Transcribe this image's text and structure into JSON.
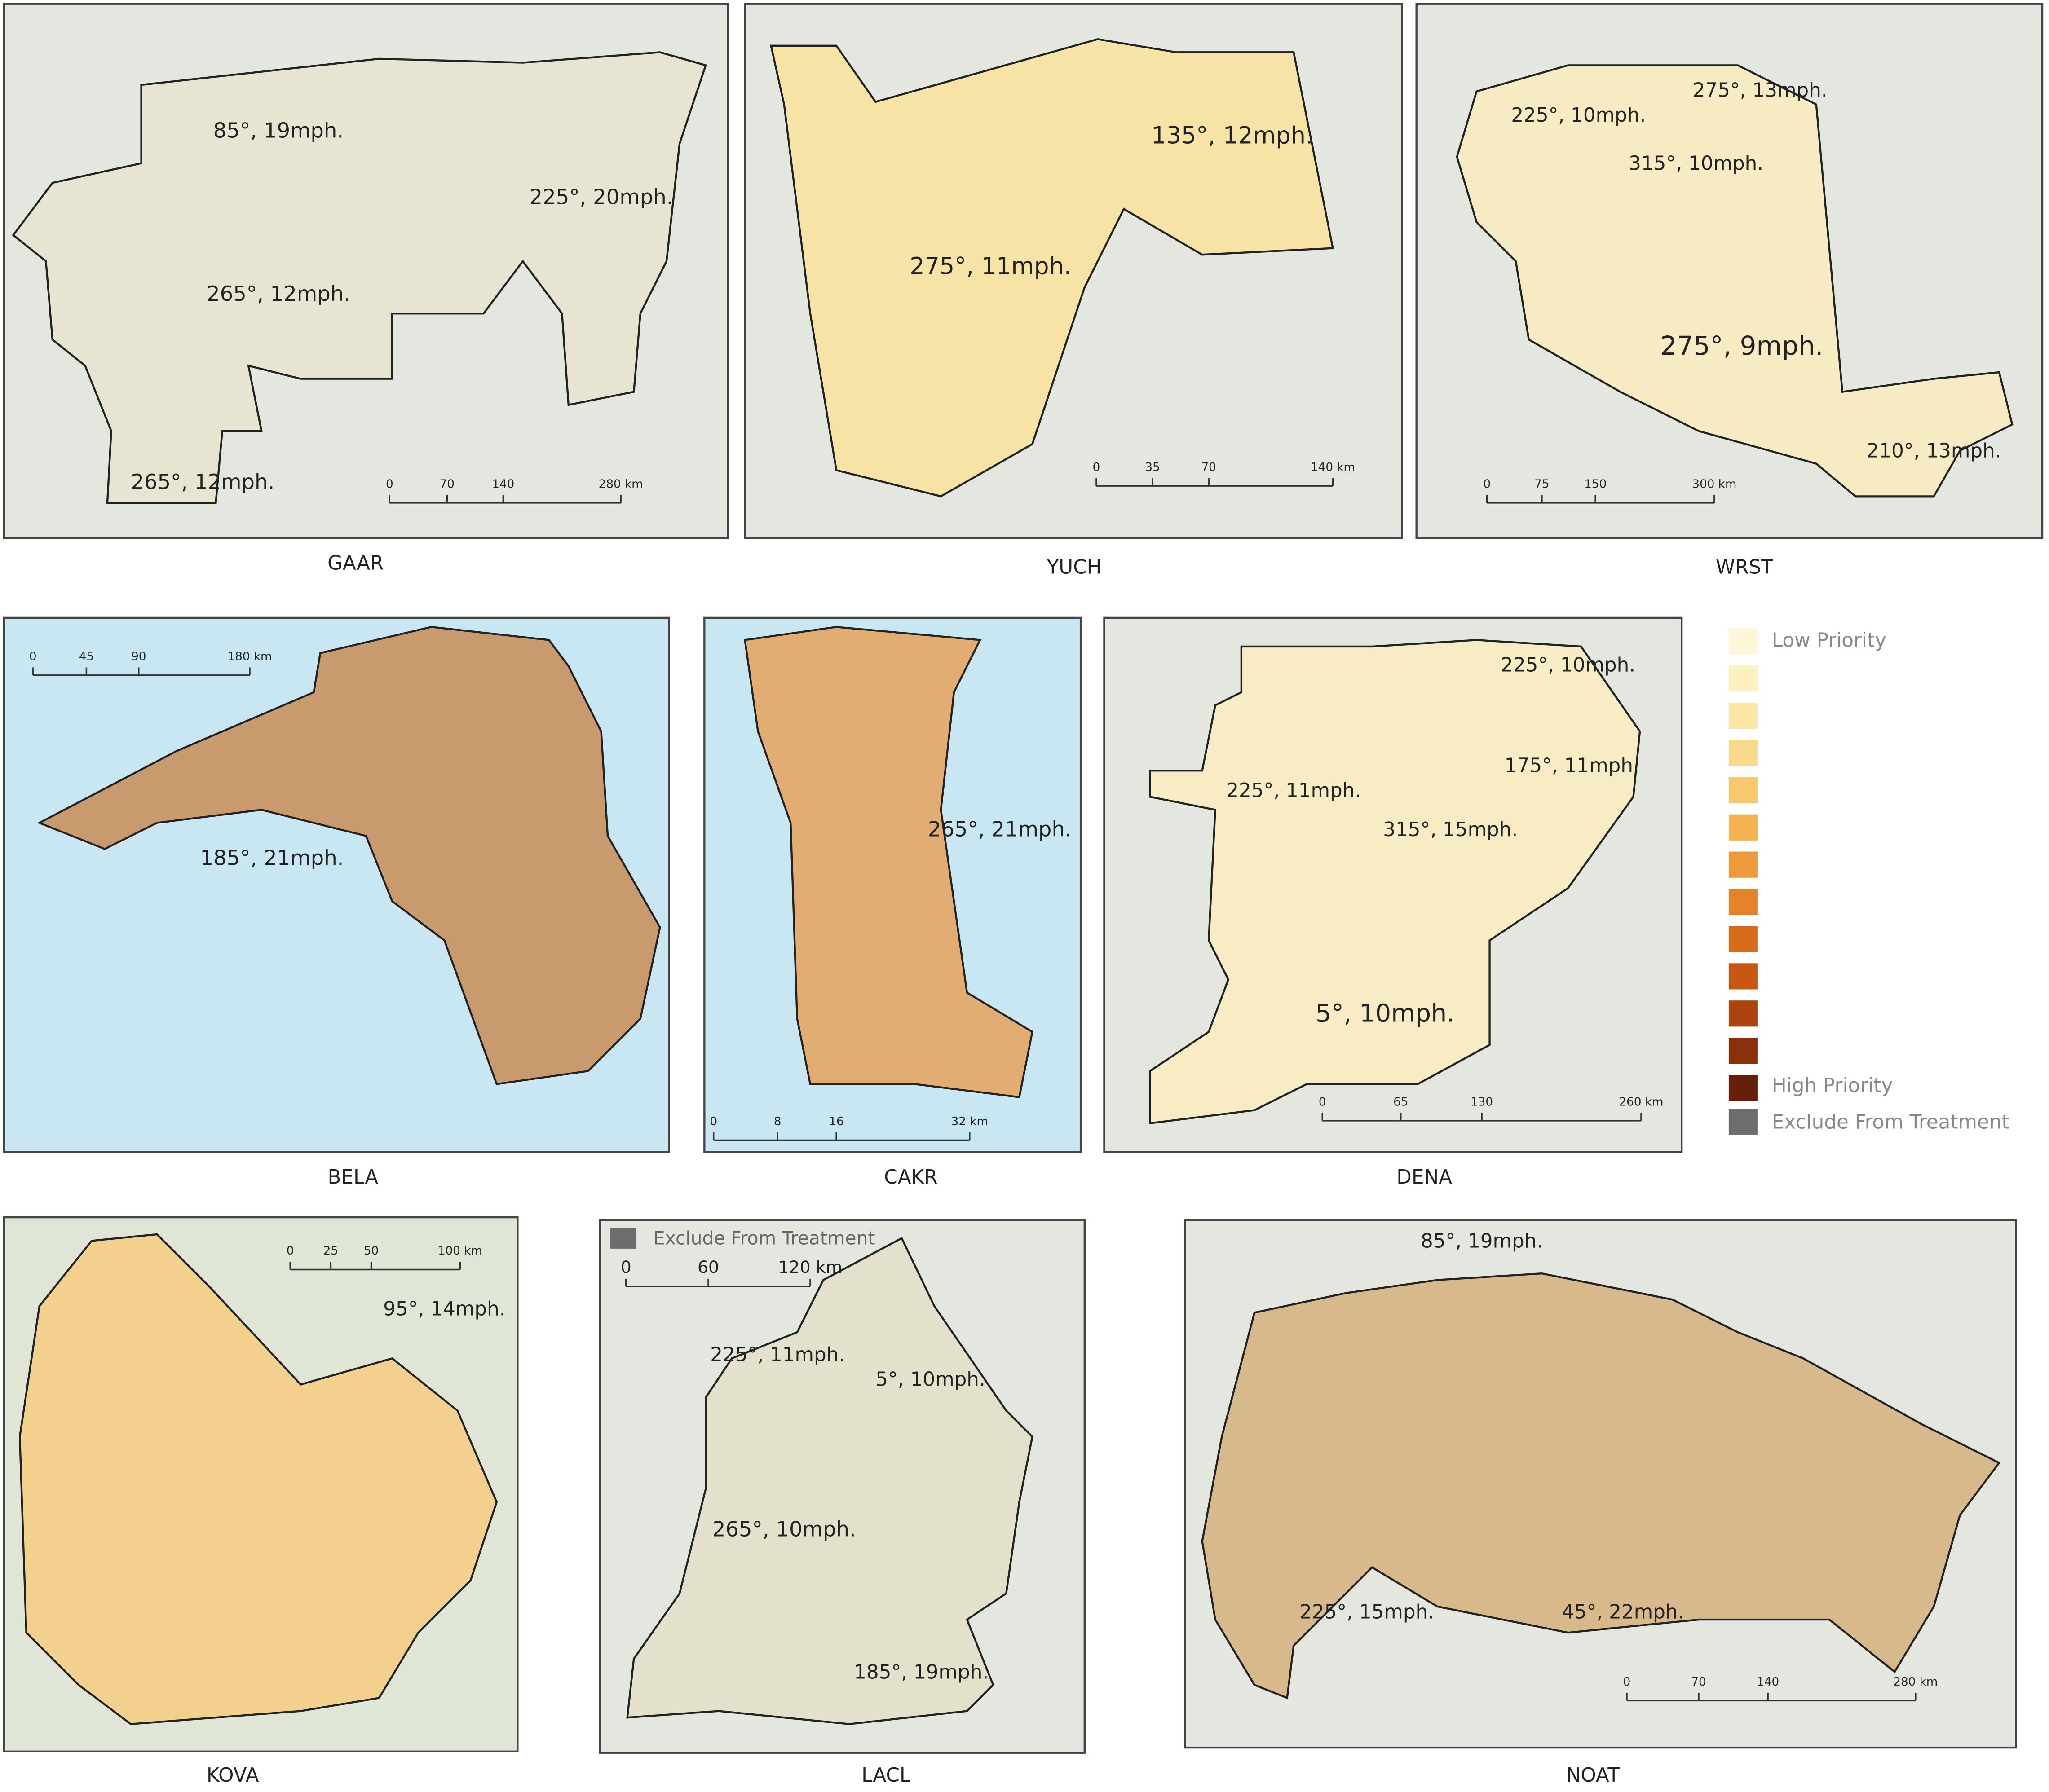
{
  "panels": [
    {
      "name": "GAAR",
      "wind_labels": [
        "85°, 19mph.",
        "225°, 20mph.",
        "265°, 12mph.",
        "265°, 12mph."
      ],
      "scale_labels": [
        "0",
        "70",
        "140",
        "280 km"
      ]
    },
    {
      "name": "YUCH",
      "wind_labels": [
        "275°, 11mph.",
        "135°, 12mph."
      ],
      "scale_labels": [
        "0",
        "35",
        "70",
        "140 km"
      ]
    },
    {
      "name": "WRST",
      "wind_labels": [
        "225°, 10mph.",
        "275°, 13mph.",
        "315°, 10mph.",
        "275°, 9mph.",
        "210°, 13mph."
      ],
      "scale_labels": [
        "0",
        "75",
        "150",
        "300 km"
      ]
    },
    {
      "name": "BELA",
      "wind_labels": [
        "185°, 21mph."
      ],
      "scale_labels": [
        "0",
        "45",
        "90",
        "180 km"
      ]
    },
    {
      "name": "CAKR",
      "wind_labels": [
        "265°, 21mph."
      ],
      "scale_labels": [
        "0",
        "8",
        "16",
        "32 km"
      ]
    },
    {
      "name": "DENA",
      "wind_labels": [
        "225°, 10mph.",
        "225°, 11mph.",
        "175°, 11mph.",
        "315°, 15mph.",
        "5°, 10mph."
      ],
      "scale_labels": [
        "0",
        "65",
        "130",
        "260 km"
      ]
    },
    {
      "name": "KOVA",
      "wind_labels": [
        "95°, 14mph."
      ],
      "scale_labels": [
        "0",
        "25",
        "50",
        "100 km"
      ]
    },
    {
      "name": "LACL",
      "wind_labels": [
        "225°, 11mph.",
        "5°, 10mph.",
        "265°, 10mph.",
        "185°, 19mph."
      ],
      "scale_labels": [
        "0",
        "60",
        "120 km"
      ],
      "inset_legend": "Exclude From Treatment"
    },
    {
      "name": "NOAT",
      "wind_labels": [
        "85°, 19mph.",
        "225°, 15mph.",
        "45°, 22mph."
      ],
      "scale_labels": [
        "0",
        "70",
        "140",
        "280 km"
      ]
    }
  ],
  "legend": {
    "low": "Low Priority",
    "high": "High Priority",
    "exclude": "Exclude From Treatment"
  }
}
